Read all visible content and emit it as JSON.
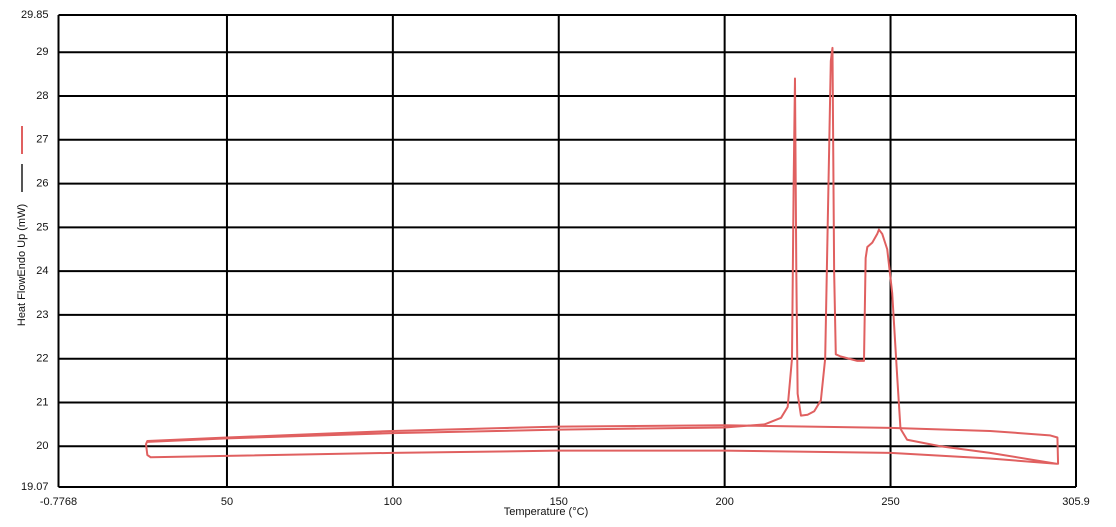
{
  "chart_data": {
    "type": "line",
    "x_label": "Temperature (°C)",
    "y_label": "Heat FlowEndo Up (mW)",
    "xlim": [
      -0.7768,
      305.9
    ],
    "xticks": [
      -0.7768,
      50,
      100,
      150,
      200,
      250,
      305.9
    ],
    "ylim": [
      19.07,
      29.85
    ],
    "yticks": [
      19.07,
      20,
      21,
      22,
      23,
      24,
      25,
      26,
      27,
      28,
      29,
      29.85
    ],
    "grid": true,
    "legend": "left",
    "series": [
      {
        "color": "#e06060",
        "x": [
          26,
          50,
          100,
          150,
          200,
          212,
          217,
          219,
          220.3,
          220.8,
          221.2,
          221.6,
          222,
          223,
          225,
          227,
          229,
          230.3,
          231.3,
          232,
          232.5,
          233,
          233.5,
          235,
          240,
          242,
          242.5,
          243,
          244.5,
          246,
          246.5,
          247.5,
          249,
          250.5,
          252,
          253,
          255,
          265,
          280,
          300,
          300.5,
          300.3,
          298,
          280,
          250,
          200,
          150,
          100,
          50,
          26,
          25.6,
          26,
          27,
          50,
          100,
          150,
          200,
          250,
          280,
          300
        ],
        "values": [
          20.1,
          20.18,
          20.3,
          20.38,
          20.43,
          20.5,
          20.65,
          20.9,
          22,
          26,
          28.4,
          24,
          21.2,
          20.7,
          20.72,
          20.8,
          21.05,
          22,
          26,
          28.8,
          29.1,
          24,
          22.1,
          22.05,
          21.95,
          21.95,
          24.3,
          24.55,
          24.65,
          24.85,
          24.95,
          24.85,
          24.5,
          23.5,
          21.6,
          20.4,
          20.15,
          20.0,
          19.85,
          19.6,
          19.6,
          20.2,
          20.25,
          20.35,
          20.42,
          20.48,
          20.45,
          20.35,
          20.2,
          20.12,
          20.05,
          19.8,
          19.75,
          19.78,
          19.85,
          19.9,
          19.9,
          19.85,
          19.72,
          19.6
        ]
      }
    ]
  }
}
